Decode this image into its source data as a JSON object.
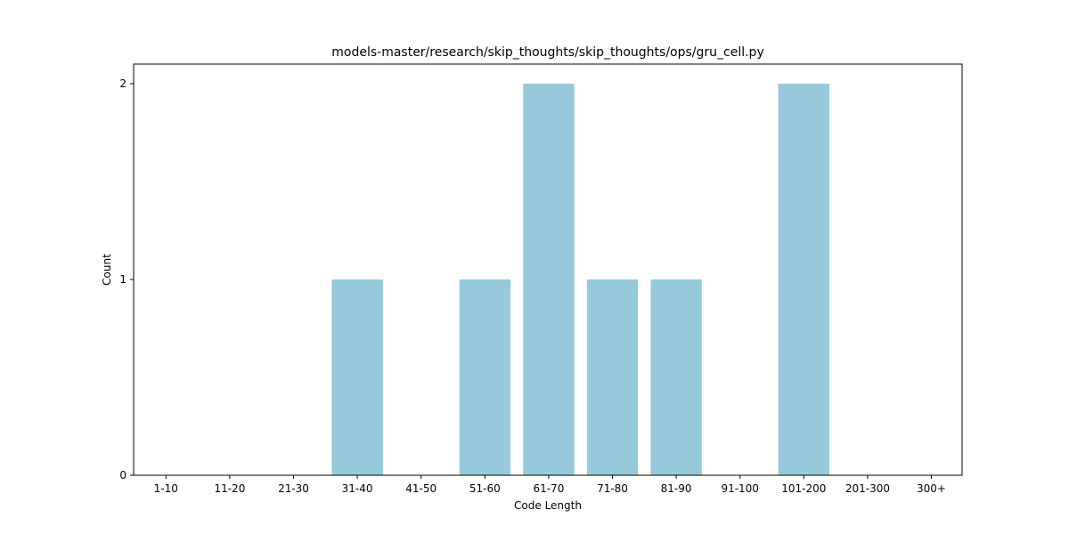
{
  "chart_data": {
    "type": "bar",
    "title": "models-master/research/skip_thoughts/skip_thoughts/ops/gru_cell.py",
    "xlabel": "Code Length",
    "ylabel": "Count",
    "categories": [
      "1-10",
      "11-20",
      "21-30",
      "31-40",
      "41-50",
      "51-60",
      "61-70",
      "71-80",
      "81-90",
      "91-100",
      "101-200",
      "201-300",
      "300+"
    ],
    "values": [
      0,
      0,
      0,
      1,
      0,
      1,
      2,
      1,
      1,
      0,
      2,
      0,
      0
    ],
    "yticks": [
      0,
      1,
      2
    ],
    "ylim": [
      0,
      2.1
    ],
    "bar_color": "#96c9dc",
    "grid": false,
    "legend": "none"
  }
}
